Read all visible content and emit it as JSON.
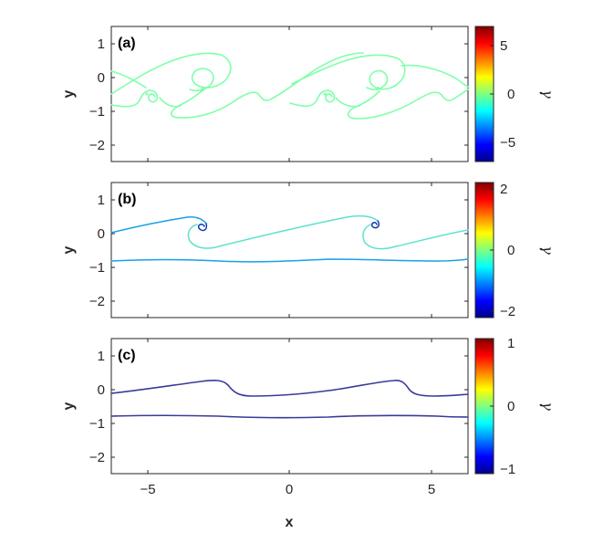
{
  "colors": {
    "colormap": [
      "#00008f",
      "#0000ff",
      "#00ffff",
      "#ffff00",
      "#ff0000",
      "#800000"
    ],
    "axes": "#262626"
  },
  "chart_data": [
    {
      "type": "line",
      "panel_label": "(a)",
      "xlabel": "x",
      "ylabel": "y",
      "xlim": [
        -6.2832,
        6.2832
      ],
      "ylim": [
        -2.5,
        1.5
      ],
      "xticks": [
        -5,
        0,
        5
      ],
      "yticks": [
        1,
        0,
        -1,
        -2
      ],
      "colorbar": {
        "label": "γ",
        "lim": [
          -7,
          7
        ],
        "ticks": [
          5,
          0,
          -5
        ]
      },
      "annotations": [
        "rolled-up vortex sheet with primary and secondary spirals, periodic in x"
      ],
      "series": [
        {
          "gamma": 0.6,
          "x": [
            -6.28,
            -5.5,
            -4.8,
            -4.2,
            -3.8,
            -3.4,
            -3.0,
            -2.6,
            -2.2,
            -1.8,
            -1.3,
            -0.9,
            -0.5,
            0.0,
            0.5,
            0.9,
            1.3,
            1.8,
            2.2,
            2.6,
            3.0,
            3.4,
            3.8,
            4.2,
            4.8,
            5.5,
            6.28
          ],
          "y": [
            -0.1,
            0.15,
            0.45,
            0.55,
            0.6,
            0.6,
            0.4,
            -0.1,
            -0.45,
            -0.55,
            -0.4,
            -0.35,
            -0.45,
            -0.1,
            0.15,
            0.45,
            0.55,
            0.6,
            0.6,
            0.4,
            -0.1,
            -0.45,
            -0.55,
            -0.4,
            -0.35,
            -0.45,
            -0.1
          ]
        }
      ]
    },
    {
      "type": "line",
      "panel_label": "(b)",
      "xlabel": "x",
      "ylabel": "y",
      "xlim": [
        -6.2832,
        6.2832
      ],
      "ylim": [
        -2.5,
        1.5
      ],
      "xticks": [
        -5,
        0,
        5
      ],
      "yticks": [
        1,
        0,
        -1,
        -2
      ],
      "colorbar": {
        "label": "γ",
        "lim": [
          -2.2,
          2.2
        ],
        "ticks": [
          2,
          0,
          -2
        ]
      },
      "series": [
        {
          "name": "",
          "gamma": -1.2,
          "x": [
            -6.28,
            -5.0,
            -4.0,
            -3.3,
            -2.9,
            -2.8,
            -2.9,
            -3.1,
            -3.3,
            -3.4,
            -3.3,
            -2.8,
            -1.5,
            0.0,
            1.5,
            2.8,
            3.3
          ],
          "y": [
            -0.05,
            0.25,
            0.45,
            0.48,
            0.4,
            0.25,
            0.12,
            0.15,
            0.0,
            -0.25,
            -0.45,
            -0.55,
            -0.35,
            -0.05,
            0.25,
            0.45,
            0.48
          ]
        },
        {
          "name": "",
          "gamma": -0.6,
          "x": [
            -6.28,
            -5.0,
            -3.5,
            -2.0,
            -0.5,
            1.0,
            2.5,
            4.0,
            5.5,
            6.28
          ],
          "y": [
            -0.78,
            -0.8,
            -0.82,
            -0.8,
            -0.8,
            -0.78,
            -0.8,
            -0.82,
            -0.8,
            -0.78
          ]
        }
      ]
    },
    {
      "type": "line",
      "panel_label": "(c)",
      "xlabel": "x",
      "ylabel": "y",
      "xlim": [
        -6.2832,
        6.2832
      ],
      "ylim": [
        -2.5,
        1.5
      ],
      "xticks": [
        -5,
        0,
        5
      ],
      "yticks": [
        1,
        0,
        -1,
        -2
      ],
      "colorbar": {
        "label": "γ",
        "lim": [
          -1,
          1
        ],
        "ticks": [
          1,
          0,
          -1
        ]
      },
      "series": [
        {
          "name": "",
          "gamma": -0.9,
          "x": [
            -6.28,
            -5.0,
            -3.8,
            -2.9,
            -2.5,
            -2.2,
            -1.9,
            -1.0,
            0.0,
            1.5,
            3.0,
            3.8,
            4.1,
            4.4,
            5.2,
            6.28
          ],
          "y": [
            -0.12,
            -0.05,
            0.1,
            0.22,
            0.15,
            -0.05,
            -0.15,
            -0.18,
            -0.18,
            -0.08,
            0.1,
            0.22,
            0.15,
            -0.05,
            -0.15,
            -0.12
          ]
        },
        {
          "name": "",
          "gamma": -0.9,
          "x": [
            -6.28,
            -4.5,
            -3.0,
            -1.5,
            0.0,
            1.5,
            3.0,
            4.5,
            6.28
          ],
          "y": [
            -0.82,
            -0.8,
            -0.78,
            -0.8,
            -0.82,
            -0.8,
            -0.78,
            -0.8,
            -0.82
          ]
        }
      ]
    }
  ]
}
